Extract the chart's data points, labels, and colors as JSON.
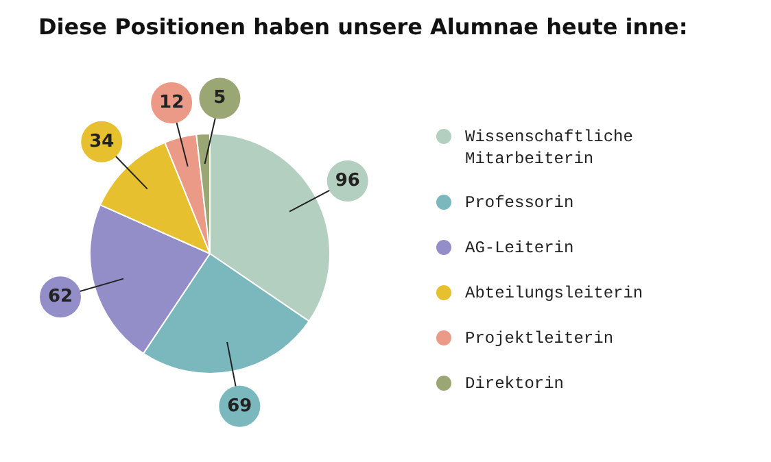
{
  "chart_data": {
    "type": "pie",
    "title": "Diese Positionen haben unsere Alumnae heute inne:",
    "categories": [
      "Wissenschaftliche Mitarbeiterin",
      "Professorin",
      "AG-Leiterin",
      "Abteilungsleiterin",
      "Projektleiterin",
      "Direktorin"
    ],
    "values": [
      96,
      69,
      62,
      34,
      12,
      5
    ],
    "colors": [
      "#b3cfc0",
      "#7ab8bd",
      "#948ec8",
      "#e6c02e",
      "#ec9a88",
      "#9aa774"
    ],
    "data_labels": true,
    "legend": "right"
  }
}
